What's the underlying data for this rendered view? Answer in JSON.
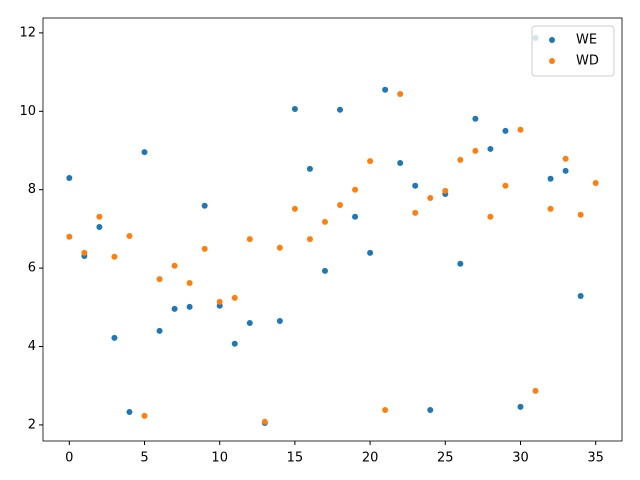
{
  "chart_data": {
    "type": "scatter",
    "x": [
      0,
      1,
      2,
      3,
      4,
      5,
      6,
      7,
      8,
      9,
      10,
      11,
      12,
      13,
      14,
      15,
      16,
      17,
      18,
      19,
      20,
      21,
      22,
      23,
      24,
      25,
      26,
      27,
      28,
      29,
      30,
      31,
      32,
      33,
      34,
      35
    ],
    "series": [
      {
        "name": "WE",
        "color": "#1f77b4",
        "values": [
          8.3,
          6.31,
          7.05,
          4.22,
          2.33,
          8.96,
          4.4,
          4.96,
          5.01,
          7.59,
          5.04,
          4.07,
          4.6,
          2.05,
          4.65,
          10.06,
          8.53,
          5.93,
          10.04,
          7.31,
          6.39,
          10.55,
          8.68,
          8.1,
          2.38,
          7.89,
          6.11,
          9.81,
          9.04,
          9.5,
          2.46,
          11.87,
          8.28,
          8.48,
          5.29,
          null
        ]
      },
      {
        "name": "WD",
        "color": "#ff7f0e",
        "values": [
          6.8,
          6.39,
          7.31,
          6.29,
          6.82,
          2.23,
          5.72,
          6.06,
          5.62,
          6.49,
          5.14,
          5.24,
          6.74,
          2.08,
          6.52,
          7.51,
          6.74,
          7.18,
          7.61,
          8.0,
          8.73,
          2.38,
          10.44,
          7.41,
          7.79,
          7.97,
          8.76,
          8.99,
          7.31,
          8.1,
          9.53,
          2.87,
          7.51,
          8.79,
          7.36,
          8.17
        ]
      }
    ],
    "xlim": [
      -1.75,
      36.75
    ],
    "xticks": [
      0,
      5,
      10,
      15,
      20,
      25,
      30,
      35
    ],
    "ylim": [
      1.59,
      12.38
    ],
    "yticks": [
      2,
      4,
      6,
      8,
      10,
      12
    ],
    "legend": "upper right"
  }
}
